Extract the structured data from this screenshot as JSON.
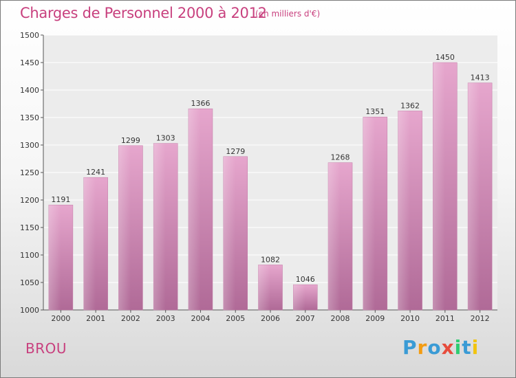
{
  "chart_data": {
    "type": "bar",
    "title": "Charges de Personnel 2000 à 2012",
    "subtitle": "(en milliers d'€)",
    "categories": [
      "2000",
      "2001",
      "2002",
      "2003",
      "2004",
      "2005",
      "2006",
      "2007",
      "2008",
      "2009",
      "2010",
      "2011",
      "2012"
    ],
    "values": [
      1191,
      1241,
      1299,
      1303,
      1366,
      1279,
      1082,
      1046,
      1268,
      1351,
      1362,
      1450,
      1413
    ],
    "ylim": [
      1000,
      1500
    ],
    "yticks": [
      1000,
      1050,
      1100,
      1150,
      1200,
      1250,
      1300,
      1350,
      1400,
      1450,
      1500
    ],
    "grid": true,
    "bar_color": "#d48ab6"
  },
  "footer": {
    "place": "BROU",
    "brand_letters": [
      {
        "ch": "P",
        "color": "#3a9bd5"
      },
      {
        "ch": "r",
        "color": "#f39c12"
      },
      {
        "ch": "o",
        "color": "#3a9bd5"
      },
      {
        "ch": "x",
        "color": "#e74c3c"
      },
      {
        "ch": "i",
        "color": "#2ecc71"
      },
      {
        "ch": "t",
        "color": "#3a9bd5"
      },
      {
        "ch": "i",
        "color": "#f1c40f"
      }
    ]
  }
}
